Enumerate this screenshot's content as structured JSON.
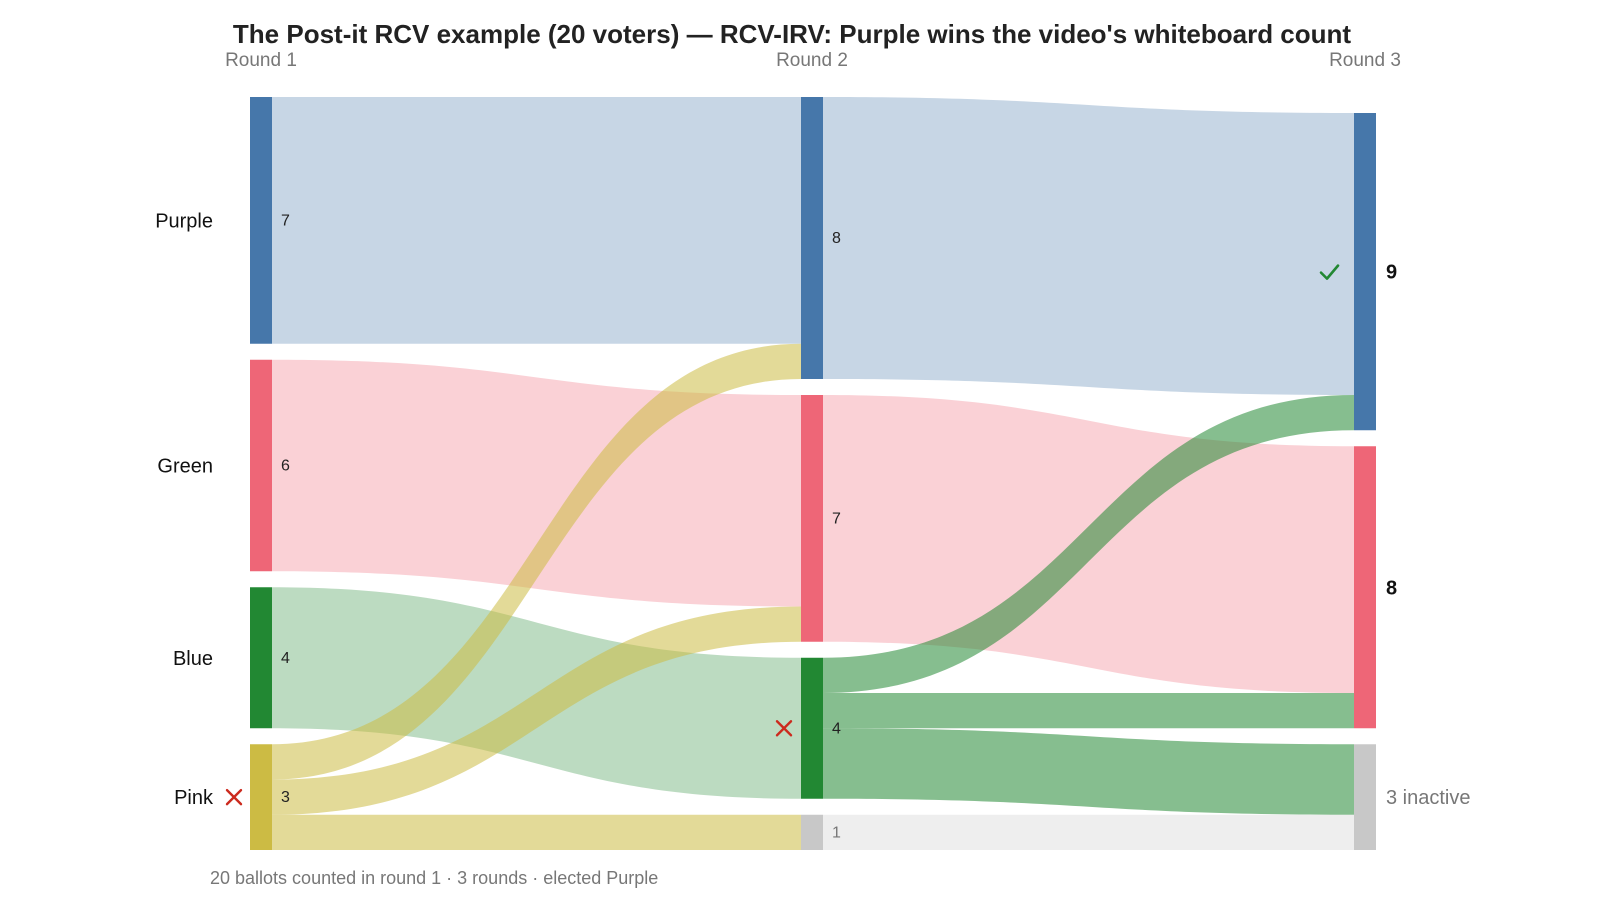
{
  "chart_data": {
    "type": "sankey",
    "title": "The Post-it RCV example (20 voters) — RCV-IRV: Purple wins the video's whiteboard count",
    "rounds": [
      "Round 1",
      "Round 2",
      "Round 3"
    ],
    "candidates": [
      {
        "name": "Purple",
        "color": "#4677aa"
      },
      {
        "name": "Green",
        "color": "#ee6677"
      },
      {
        "name": "Blue",
        "color": "#228833"
      },
      {
        "name": "Pink",
        "color": "#ccbb44"
      }
    ],
    "inactive_color": "#c8c8c8",
    "nodes": [
      {
        "round": 0,
        "candidate": "Purple",
        "value": 7,
        "label": "7"
      },
      {
        "round": 0,
        "candidate": "Green",
        "value": 6,
        "label": "6"
      },
      {
        "round": 0,
        "candidate": "Blue",
        "value": 4,
        "label": "4"
      },
      {
        "round": 0,
        "candidate": "Pink",
        "value": 3,
        "label": "3",
        "eliminated": true
      },
      {
        "round": 1,
        "candidate": "Purple",
        "value": 8,
        "label": "8"
      },
      {
        "round": 1,
        "candidate": "Green",
        "value": 7,
        "label": "7"
      },
      {
        "round": 1,
        "candidate": "Blue",
        "value": 4,
        "label": "4",
        "eliminated": true
      },
      {
        "round": 1,
        "candidate": "inactive",
        "value": 1,
        "label": "1"
      },
      {
        "round": 2,
        "candidate": "Purple",
        "value": 9,
        "label": "9",
        "winner": true
      },
      {
        "round": 2,
        "candidate": "Green",
        "value": 8,
        "label": "8"
      },
      {
        "round": 2,
        "candidate": "inactive",
        "value": 3,
        "label": "3 inactive"
      }
    ],
    "flows": [
      {
        "from_round": 0,
        "from": "Purple",
        "to": "Purple",
        "value": 7
      },
      {
        "from_round": 0,
        "from": "Green",
        "to": "Green",
        "value": 6
      },
      {
        "from_round": 0,
        "from": "Blue",
        "to": "Blue",
        "value": 4
      },
      {
        "from_round": 0,
        "from": "Pink",
        "to": "Purple",
        "value": 1
      },
      {
        "from_round": 0,
        "from": "Pink",
        "to": "Green",
        "value": 1
      },
      {
        "from_round": 0,
        "from": "Pink",
        "to": "inactive",
        "value": 1
      },
      {
        "from_round": 1,
        "from": "Purple",
        "to": "Purple",
        "value": 8
      },
      {
        "from_round": 1,
        "from": "Green",
        "to": "Green",
        "value": 7
      },
      {
        "from_round": 1,
        "from": "Blue",
        "to": "Purple",
        "value": 1
      },
      {
        "from_round": 1,
        "from": "Blue",
        "to": "Green",
        "value": 1
      },
      {
        "from_round": 1,
        "from": "Blue",
        "to": "inactive",
        "value": 2
      },
      {
        "from_round": 1,
        "from": "inactive",
        "to": "inactive",
        "value": 1
      }
    ],
    "footer": "20 ballots counted in round 1 · 3 rounds · elected Purple"
  }
}
